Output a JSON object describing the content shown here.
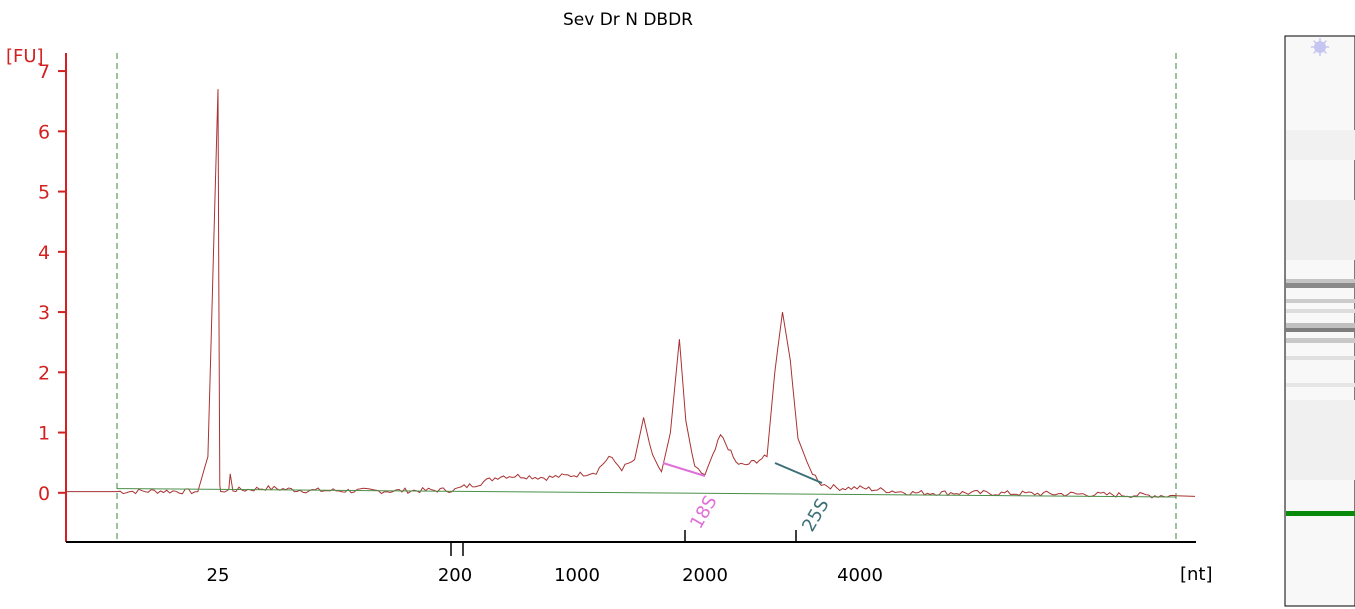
{
  "chart_data": {
    "type": "line",
    "title": "Sev Dr N DBDR",
    "ylabel": "[FU]",
    "xlabel": "[nt]",
    "ylim": [
      -0.8,
      7.3
    ],
    "yticks": [
      0,
      1,
      2,
      3,
      4,
      5,
      6,
      7
    ],
    "xticks": [
      "25",
      "200",
      "1000",
      "2000",
      "4000"
    ],
    "grid": false,
    "trace_color": "#a83232",
    "axis_color": "#d42020",
    "baseline_color": "#4a8f4a",
    "markers": [
      {
        "label": "18S",
        "color": "#e070d8"
      },
      {
        "label": "25S",
        "color": "#3d6f78"
      }
    ],
    "gel": {
      "ladder_color": "#0a8a0a",
      "marker_icon": "sparkle-icon"
    },
    "series": [
      {
        "x": [
          20,
          22,
          24,
          24.5,
          25,
          25.6,
          26.3,
          27,
          30,
          33,
          34,
          36,
          45,
          60,
          90,
          150,
          200,
          260,
          350,
          500,
          650,
          800,
          1000,
          1150,
          1250,
          1350,
          1450,
          1520,
          1590,
          1660,
          1730,
          1800,
          1850,
          1920,
          2000,
          2100,
          2200,
          2300,
          2400,
          2500,
          2600,
          2700,
          2800,
          2900,
          3000,
          3100,
          3200,
          3350,
          3500,
          3700,
          4000,
          4500,
          5000,
          6000,
          7000
        ],
        "y": [
          0.02,
          0.03,
          0.02,
          0.6,
          6.7,
          3.5,
          0.08,
          0.05,
          0.02,
          0.05,
          0.3,
          0.05,
          0.05,
          0.08,
          0.04,
          0.03,
          0.05,
          0.1,
          0.15,
          0.28,
          0.28,
          0.25,
          0.3,
          0.35,
          0.6,
          0.4,
          0.55,
          1.25,
          0.6,
          0.35,
          1.0,
          2.55,
          1.2,
          0.4,
          0.3,
          0.6,
          0.95,
          0.75,
          0.5,
          0.45,
          0.5,
          0.55,
          0.6,
          2.0,
          3.0,
          2.2,
          0.9,
          0.4,
          0.15,
          0.08,
          0.08,
          0.0,
          0.0,
          -0.02,
          -0.05
        ]
      },
      {
        "name": "baseline",
        "x": [
          20,
          7000
        ],
        "y": [
          0.07,
          -0.07
        ]
      }
    ]
  }
}
